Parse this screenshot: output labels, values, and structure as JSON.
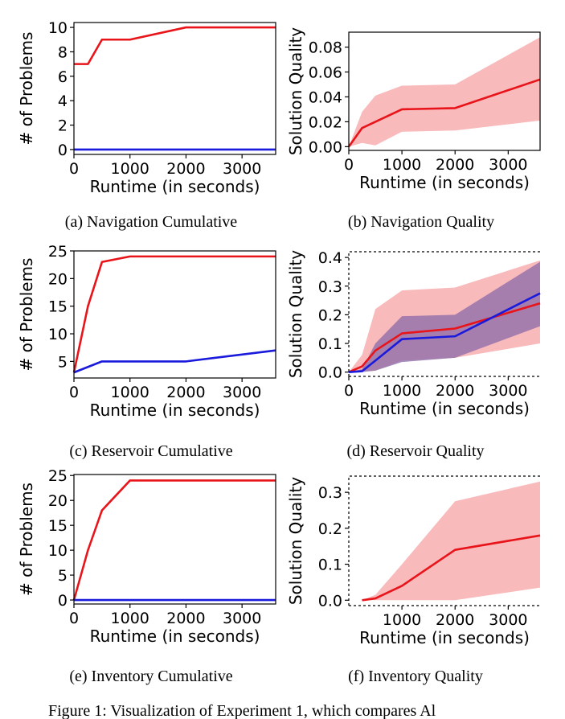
{
  "figure_caption": "Figure 1: Visualization of Experiment 1, which compares Al",
  "colors": {
    "red": "#e8141a",
    "blue": "#1a1adc",
    "red_band": "#f7a3a5",
    "blue_band": "#8a6aa8"
  },
  "chart_data": [
    {
      "id": "a",
      "type": "line",
      "caption": "(a) Navigation Cumulative",
      "xlabel": "Runtime (in seconds)",
      "ylabel": "# of Problems",
      "xlim": [
        0,
        3600
      ],
      "ylim": [
        -0.4,
        10.4
      ],
      "xticks": [
        0,
        1000,
        2000,
        3000
      ],
      "yticks": [
        0,
        2,
        4,
        6,
        8,
        10
      ],
      "ytick_labels": [
        "0",
        "2",
        "4",
        "6",
        "8",
        "10"
      ],
      "box": "full",
      "series": [
        {
          "color": "red",
          "x": [
            0,
            250,
            500,
            1000,
            2000,
            3600
          ],
          "y": [
            7,
            7,
            9,
            9,
            10,
            10
          ]
        },
        {
          "color": "blue",
          "x": [
            0,
            3600
          ],
          "y": [
            0,
            0
          ]
        }
      ]
    },
    {
      "id": "b",
      "type": "line",
      "caption": "(b) Navigation Quality",
      "xlabel": "Runtime (in seconds)",
      "ylabel": "Solution Quality",
      "xlim": [
        0,
        3600
      ],
      "ylim": [
        -0.003,
        0.092
      ],
      "xticks": [
        0,
        1000,
        2000,
        3000
      ],
      "yticks": [
        0,
        0.02,
        0.04,
        0.06,
        0.08
      ],
      "ytick_labels": [
        "0.00",
        "0.02",
        "0.04",
        "0.06",
        "0.08"
      ],
      "box": "full",
      "series": [
        {
          "color": "red",
          "x": [
            0,
            250,
            500,
            1000,
            2000,
            3600
          ],
          "y": [
            0,
            0.015,
            0.02,
            0.03,
            0.031,
            0.054
          ],
          "band_low": [
            0,
            0.003,
            0.001,
            0.012,
            0.013,
            0.021
          ],
          "band_high": [
            0,
            0.028,
            0.041,
            0.049,
            0.05,
            0.088
          ]
        }
      ]
    },
    {
      "id": "c",
      "type": "line",
      "caption": "(c) Reservoir Cumulative",
      "xlabel": "Runtime (in seconds)",
      "ylabel": "# of Problems",
      "xlim": [
        0,
        3600
      ],
      "ylim": [
        2,
        25
      ],
      "xticks": [
        0,
        1000,
        2000,
        3000
      ],
      "yticks": [
        5,
        10,
        15,
        20,
        25
      ],
      "ytick_labels": [
        "5",
        "10",
        "15",
        "20",
        "25"
      ],
      "box": "full",
      "series": [
        {
          "color": "red",
          "x": [
            0,
            250,
            500,
            1000,
            2000,
            3600
          ],
          "y": [
            3,
            15,
            23,
            24,
            24,
            24
          ]
        },
        {
          "color": "blue",
          "x": [
            0,
            500,
            1000,
            2000,
            3600
          ],
          "y": [
            3,
            5,
            5,
            5,
            7
          ]
        }
      ]
    },
    {
      "id": "d",
      "type": "line",
      "caption": "(d) Reservoir Quality",
      "xlabel": "Runtime (in seconds)",
      "ylabel": "Solution Quality",
      "xlim": [
        0,
        3600
      ],
      "ylim": [
        -0.015,
        0.42
      ],
      "xticks": [
        0,
        1000,
        2000,
        3000
      ],
      "yticks": [
        0,
        0.1,
        0.2,
        0.3,
        0.4
      ],
      "ytick_labels": [
        "0.0",
        "0.1",
        "0.2",
        "0.3",
        "0.4"
      ],
      "box": "open",
      "series": [
        {
          "color": "red",
          "x": [
            0,
            250,
            500,
            1000,
            2000,
            3600
          ],
          "y": [
            0,
            0.02,
            0.075,
            0.135,
            0.152,
            0.24
          ],
          "band_low": [
            0,
            0.002,
            0.005,
            0.04,
            0.05,
            0.1
          ],
          "band_high": [
            0,
            0.06,
            0.22,
            0.285,
            0.295,
            0.39
          ]
        },
        {
          "color": "blue",
          "x": [
            0,
            250,
            500,
            1000,
            2000,
            3600
          ],
          "y": [
            0,
            0.003,
            0.04,
            0.115,
            0.125,
            0.275
          ],
          "band_low": [
            0,
            0,
            0.005,
            0.035,
            0.05,
            0.16
          ],
          "band_high": [
            0,
            0.01,
            0.1,
            0.195,
            0.2,
            0.385
          ]
        }
      ]
    },
    {
      "id": "e",
      "type": "line",
      "caption": "(e) Inventory Cumulative",
      "xlabel": "Runtime (in seconds)",
      "ylabel": "# of Problems",
      "xlim": [
        0,
        3600
      ],
      "ylim": [
        -0.8,
        25.2
      ],
      "xticks": [
        0,
        1000,
        2000,
        3000
      ],
      "yticks": [
        0,
        5,
        10,
        15,
        20,
        25
      ],
      "ytick_labels": [
        "0",
        "5",
        "10",
        "15",
        "20",
        "25"
      ],
      "box": "full",
      "series": [
        {
          "color": "red",
          "x": [
            0,
            250,
            500,
            1000,
            2000,
            3600
          ],
          "y": [
            0,
            10,
            18,
            24,
            24,
            24
          ]
        },
        {
          "color": "blue",
          "x": [
            0,
            3600
          ],
          "y": [
            0,
            0
          ]
        }
      ]
    },
    {
      "id": "f",
      "type": "line",
      "caption": "(f) Inventory Quality",
      "xlabel": "Runtime (in seconds)",
      "ylabel": "Solution Quality",
      "xlim": [
        0,
        3600
      ],
      "ylim": [
        -0.015,
        0.345
      ],
      "xticks": [
        1000,
        2000,
        3000
      ],
      "yticks": [
        0,
        0.1,
        0.2,
        0.3
      ],
      "ytick_labels": [
        "0.0",
        "0.1",
        "0.2",
        "0.3"
      ],
      "box": "open",
      "series": [
        {
          "color": "red",
          "x": [
            250,
            500,
            1000,
            2000,
            3600
          ],
          "y": [
            0,
            0.005,
            0.04,
            0.14,
            0.18
          ],
          "band_low": [
            0,
            0,
            0,
            0,
            0.035
          ],
          "band_high": [
            0,
            0.015,
            0.1,
            0.275,
            0.33
          ]
        }
      ]
    }
  ]
}
